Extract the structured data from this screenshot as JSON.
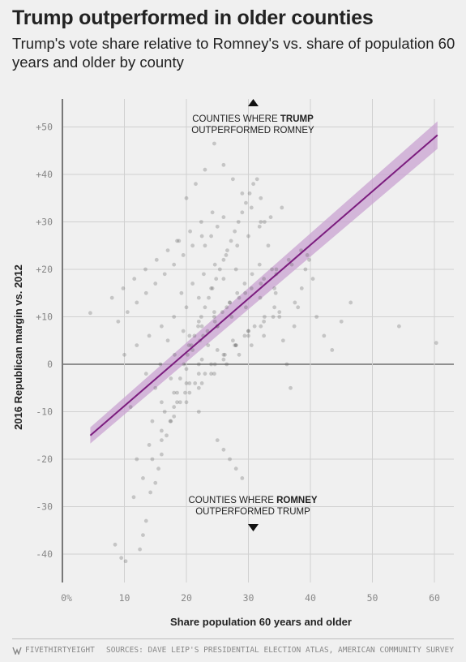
{
  "title": "Trump outperformed in older counties",
  "subtitle": "Trump's vote share relative to Romney's vs. share of population 60 years and older by county",
  "annotation_top": {
    "line1_prefix": "COUNTIES WHERE ",
    "line1_bold": "TRUMP",
    "line2": "OUTPERFORMED ROMNEY"
  },
  "annotation_bottom": {
    "line1_prefix": "COUNTIES WHERE ",
    "line1_bold": "ROMNEY",
    "line2": "OUTPERFORMED TRUMP"
  },
  "brand": "FIVETHIRTYEIGHT",
  "source": "SOURCES: DAVE LEIP'S PRESIDENTIAL ELECTION ATLAS, AMERICAN COMMUNITY SURVEY",
  "colors": {
    "background": "#f0f0f0",
    "points": "#555555",
    "trend_line": "#7b1c7e",
    "confidence_band": "#c9a3d2"
  },
  "chart_data": {
    "type": "scatter",
    "xlabel": "Share population 60 years and older",
    "ylabel": "2016 Republican margin vs. 2012",
    "xlim": [
      0,
      62
    ],
    "ylim": [
      -46,
      54
    ],
    "x_ticks": [
      0,
      10,
      20,
      30,
      40,
      50,
      60
    ],
    "x_tick_labels": [
      "0%",
      "10",
      "20",
      "30",
      "40",
      "50",
      "60"
    ],
    "y_ticks": [
      50,
      40,
      30,
      20,
      10,
      0,
      -10,
      -20,
      -30,
      -40
    ],
    "y_tick_labels": [
      "+50",
      "+40",
      "+30",
      "+20",
      "+10",
      "0",
      "-10",
      "-20",
      "-30",
      "-40"
    ],
    "grid": true,
    "trend_line": {
      "x": [
        4.5,
        60.5
      ],
      "y": [
        -15,
        48.3
      ]
    },
    "confidence_band": {
      "x": [
        4.5,
        60.5
      ],
      "upper": [
        -13.3,
        51.2
      ],
      "lower": [
        -16.7,
        45.4
      ]
    },
    "points": {
      "x": [
        4.5,
        8.5,
        9.5,
        10.2,
        11,
        12.5,
        13,
        13.5,
        14.2,
        15,
        15.5,
        16,
        16.8,
        17.4,
        18,
        18.5,
        19,
        19.6,
        20.2,
        20.8,
        21.3,
        21.9,
        22.4,
        23,
        23.6,
        24.2,
        24.8,
        25.4,
        26,
        26.6,
        27.2,
        27.8,
        28.4,
        29,
        29.6,
        30.2,
        30.8,
        31.4,
        32,
        32.6,
        33.2,
        33.8,
        34.4,
        35,
        35.6,
        36.2,
        36.8,
        37.4,
        38,
        38.6,
        39.2,
        39.8,
        40.4,
        41,
        42.2,
        43.5,
        45,
        46.5,
        54.3,
        60.3,
        18.5,
        20,
        21.5,
        23,
        24.5,
        26,
        27.5,
        29,
        30.5,
        32,
        19.2,
        21,
        22.8,
        24.6,
        26.4,
        28.2,
        30,
        31.8,
        33.6,
        35.4,
        17,
        19.5,
        22,
        24.5,
        27,
        29.5,
        32,
        34.5,
        37,
        39.5,
        15,
        17.5,
        20,
        22.5,
        25,
        27.5,
        30,
        32.5,
        35,
        37.5,
        14.5,
        16.5,
        18.5,
        20.5,
        22.5,
        24.5,
        26.5,
        28.5,
        30.5,
        32.5,
        12,
        14,
        16,
        18,
        20,
        22,
        24,
        26,
        28,
        30,
        11.5,
        13,
        14.5,
        16,
        17.5,
        19,
        20.5,
        22,
        23.5,
        25,
        10,
        12,
        14,
        16,
        18,
        20,
        22,
        24,
        26,
        28,
        9,
        10.5,
        12,
        13.5,
        15,
        16.5,
        18,
        19.5,
        21,
        22.5,
        8,
        9.8,
        11.6,
        13.4,
        15.2,
        17,
        18.8,
        20.6,
        22.4,
        24.2,
        13.5,
        15.8,
        18.1,
        20.4,
        22.7,
        25,
        27.3,
        29.6,
        31.9,
        34.2,
        21,
        22.2,
        23.4,
        24.6,
        25.8,
        27,
        28.2,
        29.4,
        30.6,
        31.8,
        19.8,
        21.4,
        23,
        24.6,
        26.2,
        27.8,
        29.4,
        31,
        32.6,
        34.2,
        20.5,
        22.5,
        24.5,
        26.5,
        28.5,
        30.5,
        32.5,
        34.5,
        36.5,
        38.5,
        16,
        18,
        20,
        22,
        24,
        26,
        28,
        30,
        32,
        34,
        25,
        26,
        27,
        28,
        29,
        23,
        24,
        25,
        26,
        22
      ],
      "y": [
        10.8,
        -38,
        -40.8,
        -41.5,
        -9,
        -39,
        -36,
        -33,
        -27,
        -25,
        -22,
        -19,
        -15,
        -12,
        -9,
        -6,
        -3,
        0,
        2,
        4,
        6,
        8,
        10,
        12,
        14,
        16,
        18,
        20,
        22,
        24,
        26,
        28,
        30,
        32,
        34,
        36,
        38,
        39,
        35,
        30,
        25,
        20,
        15,
        10,
        5,
        0,
        -5,
        8,
        12,
        16,
        20,
        22,
        18,
        10,
        6,
        3,
        9,
        13,
        8,
        4.5,
        26,
        35,
        38,
        41,
        46.5,
        42,
        39,
        36,
        33,
        30,
        15,
        17,
        19,
        21,
        23,
        25,
        27,
        29,
        31,
        33,
        5,
        7,
        9,
        11,
        13,
        15,
        17,
        19,
        21,
        23,
        -5,
        -3,
        -1,
        1,
        3,
        5,
        7,
        9,
        11,
        13,
        -12,
        -10,
        -8,
        -6,
        -4,
        -2,
        0,
        2,
        4,
        6,
        -20,
        -17,
        -14,
        -11,
        -8,
        -5,
        -2,
        1,
        4,
        7,
        -28,
        -24,
        -20,
        -16,
        -12,
        -8,
        -4,
        0,
        4,
        8,
        2,
        4,
        6,
        8,
        10,
        12,
        14,
        16,
        18,
        20,
        9,
        11,
        13,
        15,
        17,
        19,
        21,
        23,
        25,
        27,
        14,
        16,
        18,
        20,
        22,
        24,
        26,
        28,
        30,
        32,
        -2,
        0,
        2,
        4,
        6,
        8,
        10,
        12,
        14,
        16,
        3,
        5,
        7,
        9,
        11,
        13,
        15,
        17,
        19,
        21,
        -6,
        -4,
        -2,
        0,
        2,
        4,
        6,
        8,
        10,
        12,
        6,
        8,
        10,
        12,
        14,
        16,
        18,
        20,
        22,
        24,
        -8,
        -6,
        -4,
        -2,
        0,
        2,
        4,
        6,
        8,
        10,
        -16,
        -18,
        -20,
        -22,
        -24,
        25,
        27,
        29,
        31,
        -10
      ]
    }
  }
}
